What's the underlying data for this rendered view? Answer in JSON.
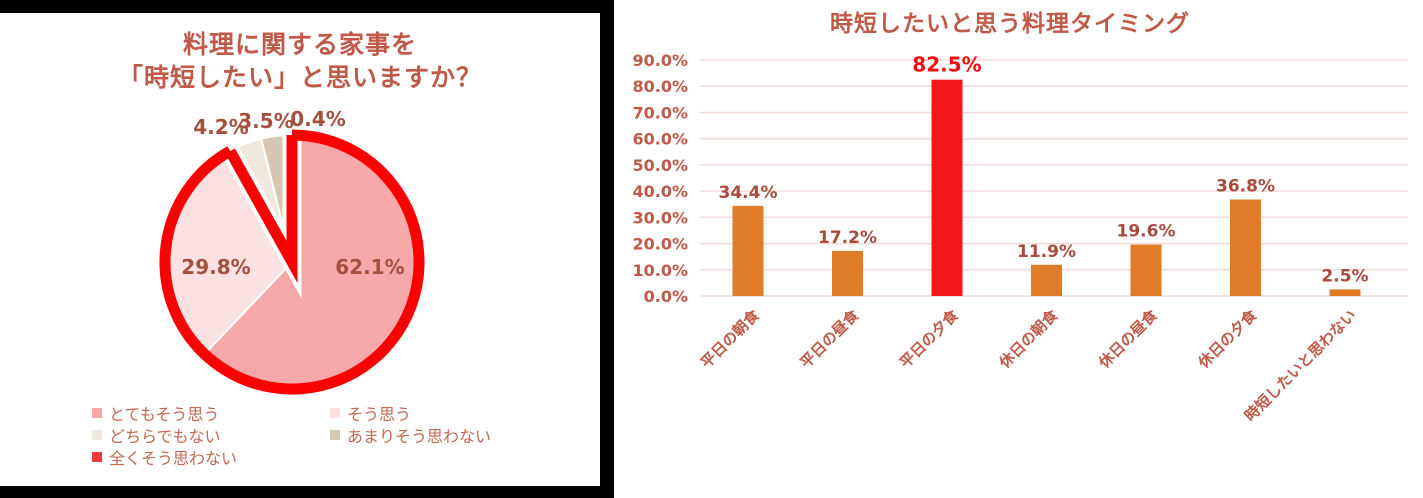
{
  "colors": {
    "title_terracotta": "#C05A48",
    "axis_terracotta": "#BE5A47",
    "data_label_brick": "#A84B3C",
    "pie_outline_red": "#FB0000",
    "bar_orange": "#E07B28",
    "bar_highlight_red": "#F5161C",
    "gridline_pink": "#F2DBD7",
    "frame_black": "#000000"
  },
  "chart_data": [
    {
      "type": "pie",
      "title_lines": [
        "料理に関する家事を",
        "「時短したい」と思いますか？"
      ],
      "labels": [
        "とてもそう思う",
        "そう思う",
        "どちらでもない",
        "あまりそう思わない",
        "全くそう思わない"
      ],
      "values": [
        62.1,
        29.8,
        4.2,
        3.5,
        0.4
      ],
      "display_labels": [
        "62.1%",
        "29.8%",
        "4.2%",
        "3.5%",
        "0.4%"
      ],
      "colors": [
        "#F7A9A9",
        "#FBE1E1",
        "#EFE9DD",
        "#D5C8B2",
        "#F33B3B"
      ],
      "outline_color": "#FB0000",
      "highlight_span_pct": 91.9,
      "legend_order": [
        0,
        2,
        4,
        1,
        3
      ],
      "legend_position": "bottom"
    },
    {
      "type": "bar",
      "title": "時短したいと思う料理タイミング",
      "categories": [
        "平日の朝食",
        "平日の昼食",
        "平日の夕食",
        "休日の朝食",
        "休日の昼食",
        "休日の夕食",
        "時短したいと思わない"
      ],
      "values": [
        34.4,
        17.2,
        82.5,
        11.9,
        19.6,
        36.8,
        2.5
      ],
      "display_labels": [
        "34.4%",
        "17.2%",
        "82.5%",
        "11.9%",
        "19.6%",
        "36.8%",
        "2.5%"
      ],
      "highlight_index": 2,
      "bar_color": "#E07B28",
      "highlight_color": "#F5161C",
      "y_ticks": [
        "0.0%",
        "10.0%",
        "20.0%",
        "30.0%",
        "40.0%",
        "50.0%",
        "60.0%",
        "70.0%",
        "80.0%",
        "90.0%"
      ],
      "ylim": [
        0,
        90
      ],
      "grid": true,
      "xlabel": "",
      "ylabel": ""
    }
  ]
}
